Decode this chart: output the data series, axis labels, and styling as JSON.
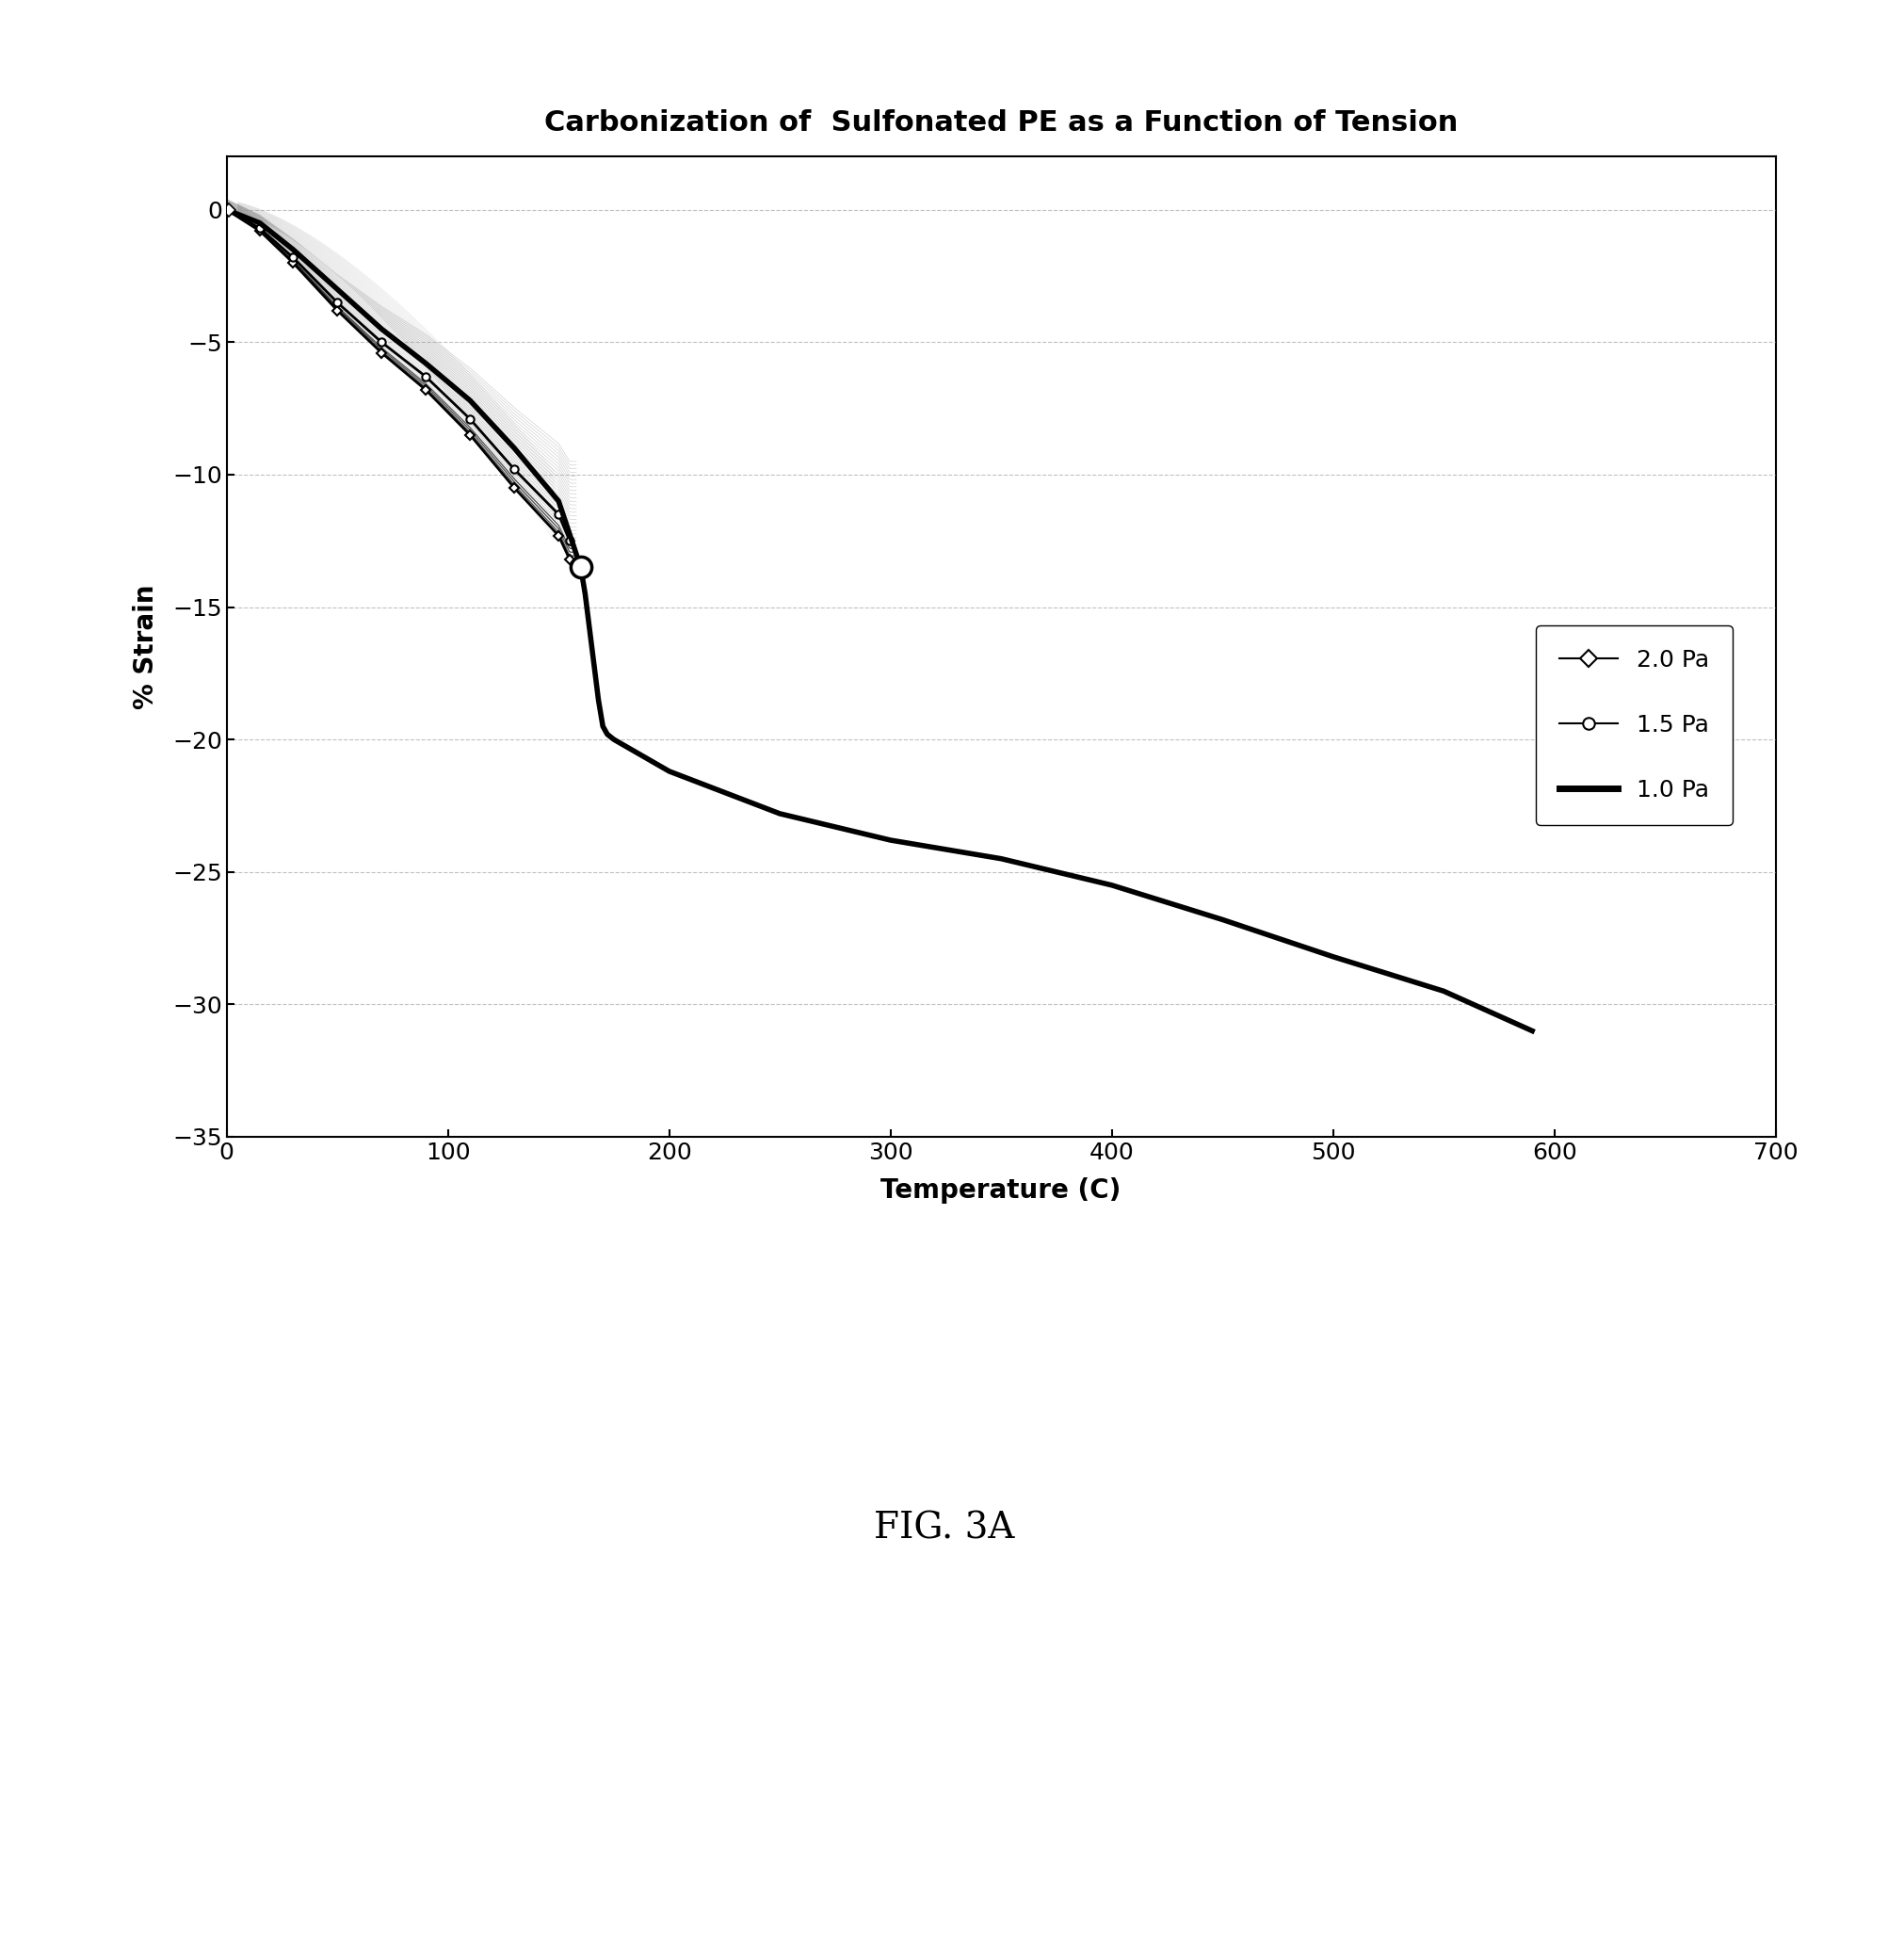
{
  "title": "Carbonization of  Sulfonated PE as a Function of Tension",
  "xlabel": "Temperature (C)",
  "ylabel": "% Strain",
  "xlim": [
    0,
    700
  ],
  "ylim": [
    -35,
    2
  ],
  "xticks": [
    0,
    100,
    200,
    300,
    400,
    500,
    600,
    700
  ],
  "yticks": [
    0,
    -5,
    -10,
    -15,
    -20,
    -25,
    -30,
    -35
  ],
  "fig_caption": "FIG. 3A",
  "background_color": "#ffffff",
  "grid_color": "#999999",
  "title_fontsize": 22,
  "label_fontsize": 20,
  "tick_fontsize": 18,
  "legend_fontsize": 18,
  "caption_fontsize": 28,
  "t_20_bold": [
    0,
    15,
    30,
    50,
    70,
    90,
    110,
    130,
    150,
    155
  ],
  "s_20_bold": [
    0,
    -0.8,
    -2.0,
    -3.8,
    -5.4,
    -6.8,
    -8.5,
    -10.5,
    -12.3,
    -13.2
  ],
  "t_15_bold": [
    0,
    15,
    30,
    50,
    70,
    90,
    110,
    130,
    150,
    155
  ],
  "s_15_bold": [
    0,
    -0.7,
    -1.8,
    -3.5,
    -5.0,
    -6.3,
    -7.9,
    -9.8,
    -11.5,
    -12.5
  ],
  "t_10_start": [
    0,
    15,
    30,
    50,
    70,
    90,
    110,
    130,
    150,
    158,
    160
  ],
  "s_10_start": [
    0,
    -0.5,
    -1.5,
    -3.0,
    -4.5,
    -5.8,
    -7.2,
    -9.0,
    -11.0,
    -13.0,
    -13.5
  ],
  "t_10_drop": [
    160,
    162,
    165,
    168,
    170,
    172,
    175
  ],
  "s_10_drop": [
    -13.5,
    -14.5,
    -16.5,
    -18.5,
    -19.5,
    -19.8,
    -20.0
  ],
  "t_10_cont": [
    175,
    200,
    250,
    300,
    350,
    400,
    450,
    500,
    550,
    590
  ],
  "s_10_cont": [
    -20.0,
    -21.2,
    -22.8,
    -23.8,
    -24.5,
    -25.5,
    -26.8,
    -28.2,
    -29.5,
    -31.0
  ]
}
